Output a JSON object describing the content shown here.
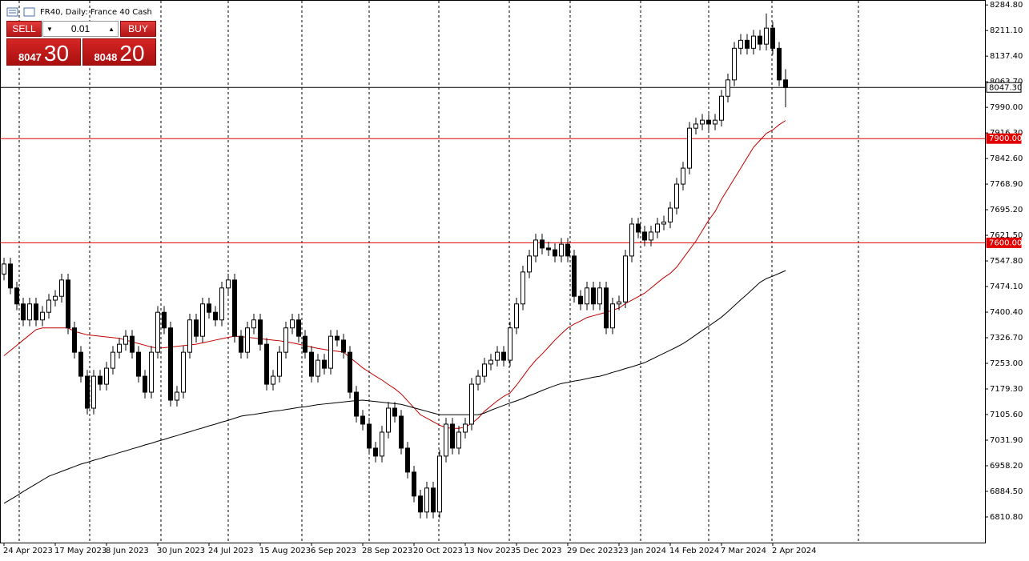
{
  "chart_data": {
    "type": "candlestick",
    "title": "FR40, Daily: France 40 Cash",
    "categories": [
      "24 Apr 2023",
      null,
      null,
      null,
      null,
      null,
      null,
      null,
      "17 May 2023",
      null,
      null,
      null,
      null,
      null,
      null,
      null,
      "8 Jun 2023",
      null,
      null,
      null,
      null,
      null,
      null,
      null,
      "30 Jun 2023",
      null,
      null,
      null,
      null,
      null,
      null,
      null,
      "24 Jul 2023",
      null,
      null,
      null,
      null,
      null,
      null,
      null,
      "15 Aug 2023",
      null,
      null,
      null,
      null,
      null,
      null,
      null,
      "6 Sep 2023",
      null,
      null,
      null,
      null,
      null,
      null,
      null,
      "28 Sep 2023",
      null,
      null,
      null,
      null,
      null,
      null,
      null,
      "20 Oct 2023",
      null,
      null,
      null,
      null,
      null,
      null,
      null,
      "13 Nov 2023",
      null,
      null,
      null,
      null,
      null,
      null,
      null,
      "5 Dec 2023",
      null,
      null,
      null,
      null,
      null,
      null,
      null,
      "29 Dec 2023",
      null,
      null,
      null,
      null,
      null,
      null,
      null,
      "23 Jan 2024",
      null,
      null,
      null,
      null,
      null,
      null,
      null,
      "14 Feb 2024",
      null,
      null,
      null,
      null,
      null,
      null,
      null,
      "7 Mar 2024",
      null,
      null,
      null,
      null,
      null,
      null,
      null,
      "2 Apr 2024",
      null,
      null
    ],
    "open": [
      7510,
      7539,
      7470,
      7424,
      7378,
      7424,
      7378,
      7400,
      7435,
      7446,
      7493,
      7355,
      7285,
      7216,
      7124,
      7216,
      7193,
      7239,
      7285,
      7308,
      7331,
      7285,
      7216,
      7170,
      7285,
      7400,
      7355,
      7147,
      7170,
      7285,
      7378,
      7331,
      7424,
      7400,
      7378,
      7470,
      7493,
      7331,
      7285,
      7355,
      7378,
      7308,
      7193,
      7216,
      7285,
      7355,
      7378,
      7331,
      7285,
      7216,
      7262,
      7239,
      7331,
      7320,
      7285,
      7170,
      7101,
      7078,
      7009,
      6986,
      7055,
      7124,
      7101,
      7009,
      6940,
      6871,
      6825,
      6894,
      6825,
      6986,
      7078,
      7009,
      7055,
      7078,
      7193,
      7216,
      7251,
      7262,
      7285,
      7262,
      7355,
      7424,
      7516,
      7562,
      7608,
      7585,
      7580,
      7562,
      7596,
      7562,
      7446,
      7424,
      7470,
      7424,
      7470,
      7355,
      7424,
      7430,
      7562,
      7654,
      7631,
      7608,
      7631,
      7654,
      7660,
      7700,
      7769,
      7815,
      7930,
      7942,
      7953,
      7942,
      7953,
      8022,
      8069,
      8160,
      8183,
      8160,
      8195,
      8172,
      8218,
      8160,
      8069
    ],
    "high": [
      7557,
      7557,
      7488,
      7442,
      7442,
      7442,
      7418,
      7453,
      7464,
      7511,
      7511,
      7373,
      7303,
      7234,
      7234,
      7234,
      7257,
      7303,
      7326,
      7349,
      7349,
      7303,
      7234,
      7303,
      7418,
      7418,
      7373,
      7188,
      7303,
      7396,
      7396,
      7442,
      7442,
      7418,
      7488,
      7511,
      7511,
      7349,
      7373,
      7396,
      7396,
      7326,
      7234,
      7303,
      7373,
      7396,
      7396,
      7349,
      7303,
      7280,
      7280,
      7349,
      7349,
      7338,
      7303,
      7188,
      7119,
      7096,
      7027,
      7073,
      7142,
      7142,
      7119,
      7027,
      6958,
      6889,
      6912,
      6912,
      7004,
      7096,
      7096,
      7073,
      7096,
      7211,
      7234,
      7269,
      7280,
      7303,
      7303,
      7373,
      7442,
      7534,
      7580,
      7626,
      7626,
      7603,
      7598,
      7614,
      7614,
      7580,
      7464,
      7488,
      7488,
      7488,
      7488,
      7442,
      7448,
      7580,
      7672,
      7672,
      7649,
      7649,
      7672,
      7678,
      7718,
      7787,
      7833,
      7948,
      7960,
      7971,
      7971,
      7971,
      8040,
      8087,
      8178,
      8201,
      8201,
      8213,
      8213,
      8260,
      8236,
      8178,
      8100
    ],
    "low": [
      7492,
      7452,
      7406,
      7360,
      7360,
      7360,
      7360,
      7382,
      7417,
      7428,
      7337,
      7267,
      7198,
      7106,
      7106,
      7175,
      7175,
      7221,
      7267,
      7290,
      7267,
      7198,
      7152,
      7152,
      7267,
      7337,
      7129,
      7129,
      7152,
      7267,
      7313,
      7313,
      7382,
      7360,
      7360,
      7452,
      7313,
      7267,
      7267,
      7337,
      7290,
      7175,
      7175,
      7198,
      7267,
      7337,
      7313,
      7267,
      7198,
      7198,
      7221,
      7221,
      7302,
      7267,
      7152,
      7083,
      7060,
      6991,
      6968,
      6968,
      7037,
      7083,
      6991,
      6922,
      6853,
      6807,
      6807,
      6807,
      6807,
      6968,
      6991,
      6991,
      7037,
      7060,
      7175,
      7198,
      7233,
      7244,
      7244,
      7244,
      7337,
      7406,
      7498,
      7544,
      7567,
      7562,
      7544,
      7544,
      7544,
      7428,
      7406,
      7406,
      7406,
      7406,
      7337,
      7337,
      7406,
      7412,
      7544,
      7613,
      7590,
      7590,
      7613,
      7636,
      7642,
      7682,
      7751,
      7797,
      7912,
      7924,
      7924,
      7924,
      7935,
      8004,
      8051,
      8142,
      8142,
      8142,
      8154,
      8154,
      8142,
      8051,
      7990
    ],
    "close": [
      7539,
      7470,
      7424,
      7378,
      7424,
      7378,
      7400,
      7435,
      7446,
      7493,
      7355,
      7285,
      7216,
      7124,
      7216,
      7193,
      7239,
      7285,
      7308,
      7331,
      7285,
      7216,
      7170,
      7285,
      7400,
      7355,
      7147,
      7170,
      7285,
      7378,
      7331,
      7424,
      7400,
      7378,
      7470,
      7493,
      7331,
      7285,
      7355,
      7378,
      7308,
      7193,
      7216,
      7285,
      7355,
      7378,
      7331,
      7285,
      7216,
      7262,
      7239,
      7331,
      7320,
      7285,
      7170,
      7101,
      7078,
      7009,
      6986,
      7055,
      7124,
      7101,
      7009,
      6940,
      6871,
      6825,
      6894,
      6825,
      6986,
      7078,
      7009,
      7055,
      7078,
      7193,
      7216,
      7251,
      7262,
      7285,
      7262,
      7355,
      7424,
      7516,
      7562,
      7608,
      7585,
      7580,
      7562,
      7596,
      7562,
      7446,
      7424,
      7470,
      7424,
      7470,
      7355,
      7424,
      7430,
      7562,
      7654,
      7631,
      7608,
      7631,
      7654,
      7660,
      7700,
      7769,
      7815,
      7930,
      7942,
      7953,
      7942,
      7953,
      8022,
      8069,
      8160,
      8183,
      8160,
      8195,
      8172,
      8218,
      8160,
      8069,
      8047.3
    ],
    "series": [
      {
        "color": "#c00000",
        "values": [
          7275,
          7290,
          7305,
          7320,
          7335,
          7350,
          7355,
          7355,
          7355,
          7355,
          7355,
          7345,
          7340,
          7335,
          7333,
          7331,
          7329,
          7327,
          7325,
          7320,
          7315,
          7310,
          7305,
          7300,
          7297,
          7298,
          7300,
          7302,
          7304,
          7306,
          7308,
          7312,
          7316,
          7320,
          7324,
          7328,
          7331,
          7330,
          7328,
          7326,
          7324,
          7322,
          7320,
          7318,
          7315,
          7312,
          7308,
          7304,
          7300,
          7296,
          7293,
          7290,
          7288,
          7285,
          7270,
          7255,
          7240,
          7228,
          7216,
          7205,
          7192,
          7180,
          7165,
          7145,
          7125,
          7105,
          7095,
          7085,
          7075,
          7068,
          7066,
          7066,
          7070,
          7080,
          7095,
          7115,
          7130,
          7145,
          7158,
          7168,
          7190,
          7215,
          7240,
          7262,
          7280,
          7300,
          7320,
          7338,
          7355,
          7366,
          7375,
          7385,
          7390,
          7395,
          7400,
          7406,
          7412,
          7425,
          7435,
          7445,
          7455,
          7470,
          7485,
          7500,
          7512,
          7530,
          7555,
          7580,
          7605,
          7635,
          7665,
          7690,
          7725,
          7755,
          7785,
          7815,
          7845,
          7875,
          7895,
          7915,
          7925,
          7940,
          7952
        ]
      },
      {
        "color": "#000000",
        "values": [
          6850,
          6861,
          6872,
          6884,
          6895,
          6906,
          6917,
          6928,
          6935,
          6942,
          6949,
          6956,
          6963,
          6968,
          6974,
          6979,
          6985,
          6990,
          6996,
          7001,
          7007,
          7012,
          7018,
          7023,
          7029,
          7034,
          7040,
          7045,
          7051,
          7056,
          7062,
          7067,
          7073,
          7078,
          7084,
          7089,
          7095,
          7101,
          7104,
          7106,
          7109,
          7112,
          7115,
          7117,
          7120,
          7123,
          7126,
          7128,
          7131,
          7134,
          7136,
          7138,
          7140,
          7142,
          7144,
          7146,
          7147,
          7145,
          7143,
          7141,
          7139,
          7137,
          7135,
          7130,
          7125,
          7120,
          7115,
          7110,
          7105,
          7105,
          7105,
          7105,
          7105,
          7105,
          7105,
          7110,
          7118,
          7125,
          7132,
          7139,
          7145,
          7152,
          7160,
          7167,
          7175,
          7182,
          7189,
          7195,
          7198,
          7202,
          7205,
          7209,
          7213,
          7216,
          7221,
          7227,
          7232,
          7238,
          7243,
          7249,
          7255,
          7264,
          7273,
          7282,
          7291,
          7300,
          7310,
          7322,
          7335,
          7348,
          7360,
          7373,
          7386,
          7402,
          7419,
          7436,
          7452,
          7469,
          7486,
          7497,
          7504,
          7512,
          7520
        ]
      }
    ],
    "ylim": [
      6737,
      8299
    ],
    "yticks": [
      {
        "value": 8284.8,
        "label": "8284.80"
      },
      {
        "value": 8211.1,
        "label": "8211.10"
      },
      {
        "value": 8137.4,
        "label": "8137.40"
      },
      {
        "value": 8063.7,
        "label": "8063.70"
      },
      {
        "value": 7990,
        "label": "7990.00"
      },
      {
        "value": 7916.3,
        "label": "7916.30"
      },
      {
        "value": 7842.6,
        "label": "7842.60"
      },
      {
        "value": 7768.9,
        "label": "7768.90"
      },
      {
        "value": 7695.2,
        "label": "7695.20"
      },
      {
        "value": 7621.5,
        "label": "7621.50"
      },
      {
        "value": 7547.8,
        "label": "7547.80"
      },
      {
        "value": 7474.1,
        "label": "7474.10"
      },
      {
        "value": 7400.4,
        "label": "7400.40"
      },
      {
        "value": 7326.7,
        "label": "7326.70"
      },
      {
        "value": 7253,
        "label": "7253.00"
      },
      {
        "value": 7179.3,
        "label": "7179.30"
      },
      {
        "value": 7105.6,
        "label": "7105.60"
      },
      {
        "value": 7031.9,
        "label": "7031.90"
      },
      {
        "value": 6958.2,
        "label": "6958.20"
      },
      {
        "value": 6884.5,
        "label": "6884.50"
      },
      {
        "value": 6810.8,
        "label": "6810.80"
      }
    ],
    "hlines": [
      {
        "value": 8047.3,
        "label": "8047.30",
        "color": "#000000"
      },
      {
        "value": 7900,
        "label": "7900.00",
        "color": "#e00000"
      },
      {
        "value": 7600,
        "label": "7600.00",
        "color": "#e00000"
      }
    ],
    "up_color": "#ffffff",
    "down_color": "#000000"
  },
  "trade_panel": {
    "sell": "SELL",
    "buy": "BUY",
    "volume": "0.01",
    "sell_price_main": "8047",
    "sell_price_pips": "30",
    "buy_price_main": "8048",
    "buy_price_pips": "20"
  }
}
